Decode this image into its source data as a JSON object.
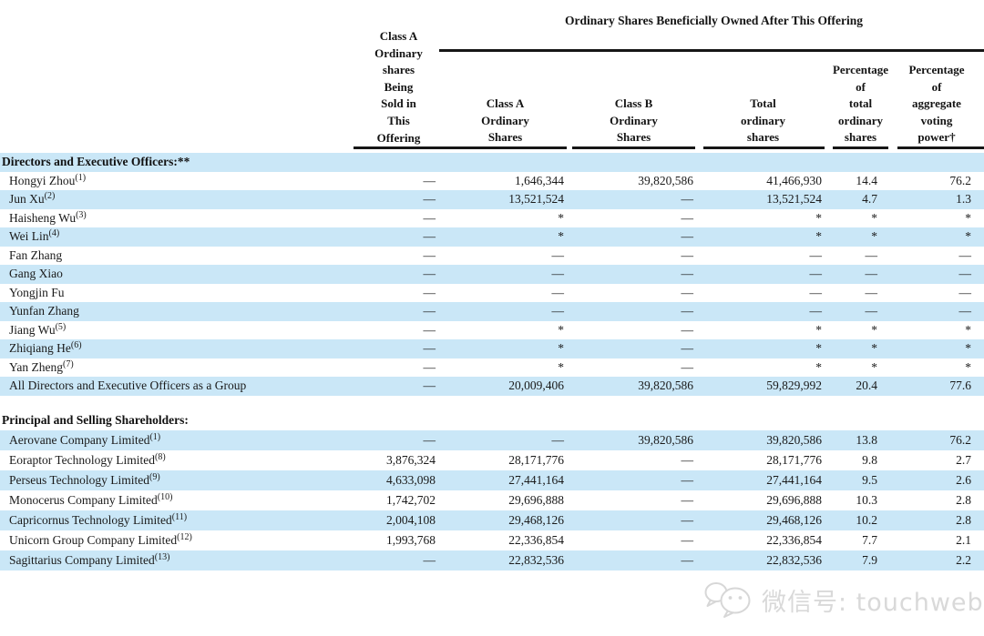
{
  "colors": {
    "stripe": "#cae7f7",
    "line": "#161616",
    "watermark": "#d9d9d9"
  },
  "table": {
    "span_header": "Ordinary Shares Beneficially Owned After This Offering",
    "sold_header_lines": [
      "Class A",
      "Ordinary",
      "shares",
      "Being",
      "Sold in",
      "This",
      "Offering"
    ],
    "columns": [
      {
        "lines": [
          "Class A",
          "Ordinary",
          "Shares"
        ]
      },
      {
        "lines": [
          "Class B",
          "Ordinary",
          "Shares"
        ]
      },
      {
        "lines": [
          "Total",
          "ordinary",
          "shares"
        ]
      },
      {
        "lines": [
          "Percentage",
          "of",
          "total",
          "ordinary",
          "shares"
        ]
      },
      {
        "lines": [
          "Percentage",
          "of",
          "aggregate",
          "voting",
          "power†"
        ]
      }
    ],
    "sections": [
      {
        "header": "Directors and Executive Officers:**",
        "rows": [
          {
            "name": "Hongyi Zhou",
            "sup": "(1)",
            "cells": [
              "—",
              "1,646,344",
              "39,820,586",
              "41,466,930",
              "14.4",
              "76.2"
            ]
          },
          {
            "name": "Jun Xu",
            "sup": "(2)",
            "cells": [
              "—",
              "13,521,524",
              "—",
              "13,521,524",
              "4.7",
              "1.3"
            ]
          },
          {
            "name": "Haisheng Wu",
            "sup": "(3)",
            "cells": [
              "—",
              "*",
              "—",
              "*",
              "*",
              "*"
            ]
          },
          {
            "name": "Wei Lin",
            "sup": "(4)",
            "cells": [
              "—",
              "*",
              "—",
              "*",
              "*",
              "*"
            ]
          },
          {
            "name": "Fan Zhang",
            "sup": "",
            "cells": [
              "—",
              "—",
              "—",
              "—",
              "—",
              "—"
            ]
          },
          {
            "name": "Gang Xiao",
            "sup": "",
            "cells": [
              "—",
              "—",
              "—",
              "—",
              "—",
              "—"
            ]
          },
          {
            "name": "Yongjin Fu",
            "sup": "",
            "cells": [
              "—",
              "—",
              "—",
              "—",
              "—",
              "—"
            ]
          },
          {
            "name": "Yunfan Zhang",
            "sup": "",
            "cells": [
              "—",
              "—",
              "—",
              "—",
              "—",
              "—"
            ]
          },
          {
            "name": "Jiang Wu",
            "sup": "(5)",
            "cells": [
              "—",
              "*",
              "—",
              "*",
              "*",
              "*"
            ]
          },
          {
            "name": "Zhiqiang He",
            "sup": "(6)",
            "cells": [
              "—",
              "*",
              "—",
              "*",
              "*",
              "*"
            ]
          },
          {
            "name": "Yan Zheng",
            "sup": "(7)",
            "cells": [
              "—",
              "*",
              "—",
              "*",
              "*",
              "*"
            ]
          },
          {
            "name": "All Directors and Executive Officers as a Group",
            "sup": "",
            "cells": [
              "—",
              "20,009,406",
              "39,820,586",
              "59,829,992",
              "20.4",
              "77.6"
            ]
          }
        ]
      },
      {
        "header": "Principal and Selling Shareholders:",
        "rows": [
          {
            "name": "Aerovane Company Limited",
            "sup": "(1)",
            "cells": [
              "—",
              "—",
              "39,820,586",
              "39,820,586",
              "13.8",
              "76.2"
            ]
          },
          {
            "name": "Eoraptor Technology Limited",
            "sup": "(8)",
            "cells": [
              "3,876,324",
              "28,171,776",
              "—",
              "28,171,776",
              "9.8",
              "2.7"
            ]
          },
          {
            "name": "Perseus Technology Limited",
            "sup": "(9)",
            "cells": [
              "4,633,098",
              "27,441,164",
              "—",
              "27,441,164",
              "9.5",
              "2.6"
            ]
          },
          {
            "name": "Monocerus Company Limited",
            "sup": "(10)",
            "cells": [
              "1,742,702",
              "29,696,888",
              "—",
              "29,696,888",
              "10.3",
              "2.8"
            ]
          },
          {
            "name": "Capricornus Technology Limited",
            "sup": "(11)",
            "cells": [
              "2,004,108",
              "29,468,126",
              "—",
              "29,468,126",
              "10.2",
              "2.8"
            ]
          },
          {
            "name": "Unicorn Group Company Limited",
            "sup": "(12)",
            "cells": [
              "1,993,768",
              "22,336,854",
              "—",
              "22,336,854",
              "7.7",
              "2.1"
            ]
          },
          {
            "name": "Sagittarius Company Limited",
            "sup": "(13)",
            "cells": [
              "—",
              "22,832,536",
              "—",
              "22,832,536",
              "7.9",
              "2.2"
            ]
          }
        ]
      }
    ]
  },
  "watermark": {
    "text": "微信号: touchweb",
    "icon": "wechat-icon"
  }
}
